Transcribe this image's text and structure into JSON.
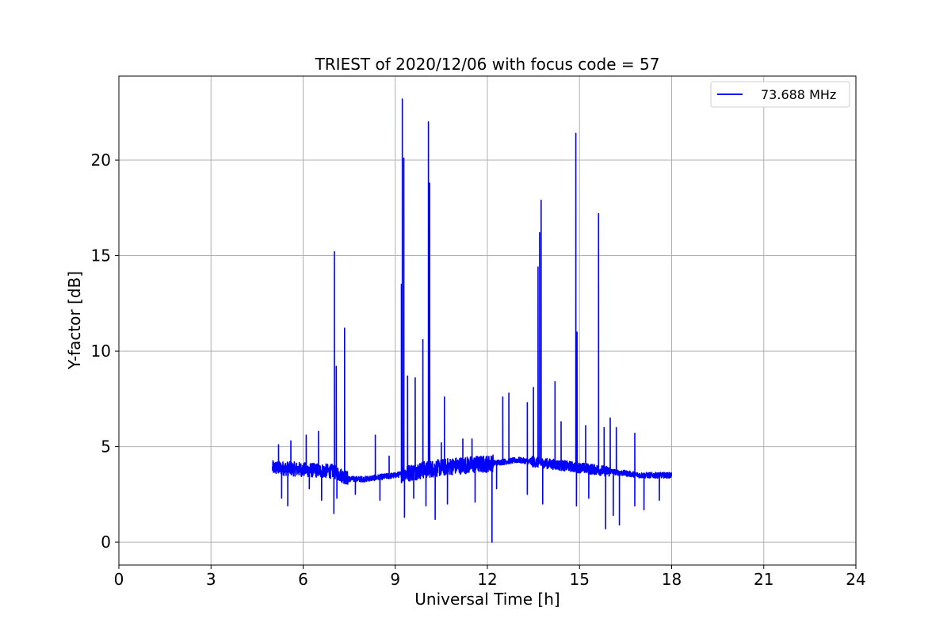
{
  "chart_data": {
    "type": "line",
    "title": "TRIEST of 2020/12/06 with focus code = 57",
    "xlabel": "Universal Time [h]",
    "ylabel": "Y-factor [dB]",
    "xlim": [
      0,
      24
    ],
    "ylim": [
      -1.2,
      24.4
    ],
    "xticks": [
      0,
      3,
      6,
      9,
      12,
      15,
      18,
      21,
      24
    ],
    "yticks": [
      0,
      5,
      10,
      15,
      20
    ],
    "grid": true,
    "legend_position": "top-right",
    "series": [
      {
        "name": "73.688 MHz",
        "color": "#0000ff",
        "x_range": [
          5.0,
          18.0
        ],
        "baseline": [
          [
            5.0,
            3.9
          ],
          [
            6.0,
            3.8
          ],
          [
            7.0,
            3.7
          ],
          [
            7.5,
            3.3
          ],
          [
            8.0,
            3.3
          ],
          [
            8.5,
            3.4
          ],
          [
            9.0,
            3.5
          ],
          [
            10.0,
            3.8
          ],
          [
            11.0,
            4.0
          ],
          [
            12.0,
            4.1
          ],
          [
            13.0,
            4.3
          ],
          [
            14.0,
            4.1
          ],
          [
            15.0,
            3.9
          ],
          [
            16.0,
            3.7
          ],
          [
            17.0,
            3.5
          ],
          [
            18.0,
            3.5
          ]
        ],
        "spikes": [
          [
            5.2,
            5.1
          ],
          [
            5.6,
            5.3
          ],
          [
            6.1,
            5.6
          ],
          [
            6.5,
            5.8
          ],
          [
            7.02,
            15.2
          ],
          [
            7.08,
            9.2
          ],
          [
            7.35,
            11.2
          ],
          [
            8.35,
            5.6
          ],
          [
            8.8,
            4.5
          ],
          [
            9.2,
            13.5
          ],
          [
            9.23,
            23.2
          ],
          [
            9.28,
            20.1
          ],
          [
            9.4,
            8.7
          ],
          [
            9.65,
            8.6
          ],
          [
            9.9,
            10.6
          ],
          [
            10.08,
            22.0
          ],
          [
            10.12,
            18.8
          ],
          [
            10.5,
            5.2
          ],
          [
            10.6,
            7.6
          ],
          [
            11.2,
            5.4
          ],
          [
            11.5,
            5.4
          ],
          [
            12.5,
            7.6
          ],
          [
            12.7,
            7.8
          ],
          [
            13.3,
            7.3
          ],
          [
            13.5,
            8.1
          ],
          [
            13.65,
            14.4
          ],
          [
            13.7,
            16.2
          ],
          [
            13.75,
            17.9
          ],
          [
            14.2,
            8.4
          ],
          [
            14.4,
            6.3
          ],
          [
            14.88,
            21.4
          ],
          [
            14.92,
            11.0
          ],
          [
            15.2,
            6.1
          ],
          [
            15.62,
            17.2
          ],
          [
            15.8,
            6.0
          ],
          [
            16.0,
            6.5
          ],
          [
            16.2,
            6.0
          ],
          [
            16.8,
            5.7
          ]
        ],
        "dips": [
          [
            5.3,
            2.3
          ],
          [
            5.5,
            1.9
          ],
          [
            6.2,
            2.8
          ],
          [
            6.6,
            2.2
          ],
          [
            7.0,
            1.5
          ],
          [
            7.1,
            2.3
          ],
          [
            7.7,
            2.5
          ],
          [
            8.5,
            2.2
          ],
          [
            9.3,
            1.3
          ],
          [
            9.6,
            2.3
          ],
          [
            10.0,
            1.9
          ],
          [
            10.3,
            1.2
          ],
          [
            10.7,
            2.0
          ],
          [
            11.6,
            2.1
          ],
          [
            12.15,
            0.0
          ],
          [
            12.3,
            2.8
          ],
          [
            13.3,
            2.5
          ],
          [
            13.8,
            2.0
          ],
          [
            14.9,
            1.9
          ],
          [
            15.3,
            2.3
          ],
          [
            15.85,
            0.7
          ],
          [
            16.1,
            1.4
          ],
          [
            16.3,
            0.9
          ],
          [
            16.8,
            1.9
          ],
          [
            17.1,
            1.7
          ],
          [
            17.6,
            2.2
          ]
        ]
      }
    ]
  }
}
